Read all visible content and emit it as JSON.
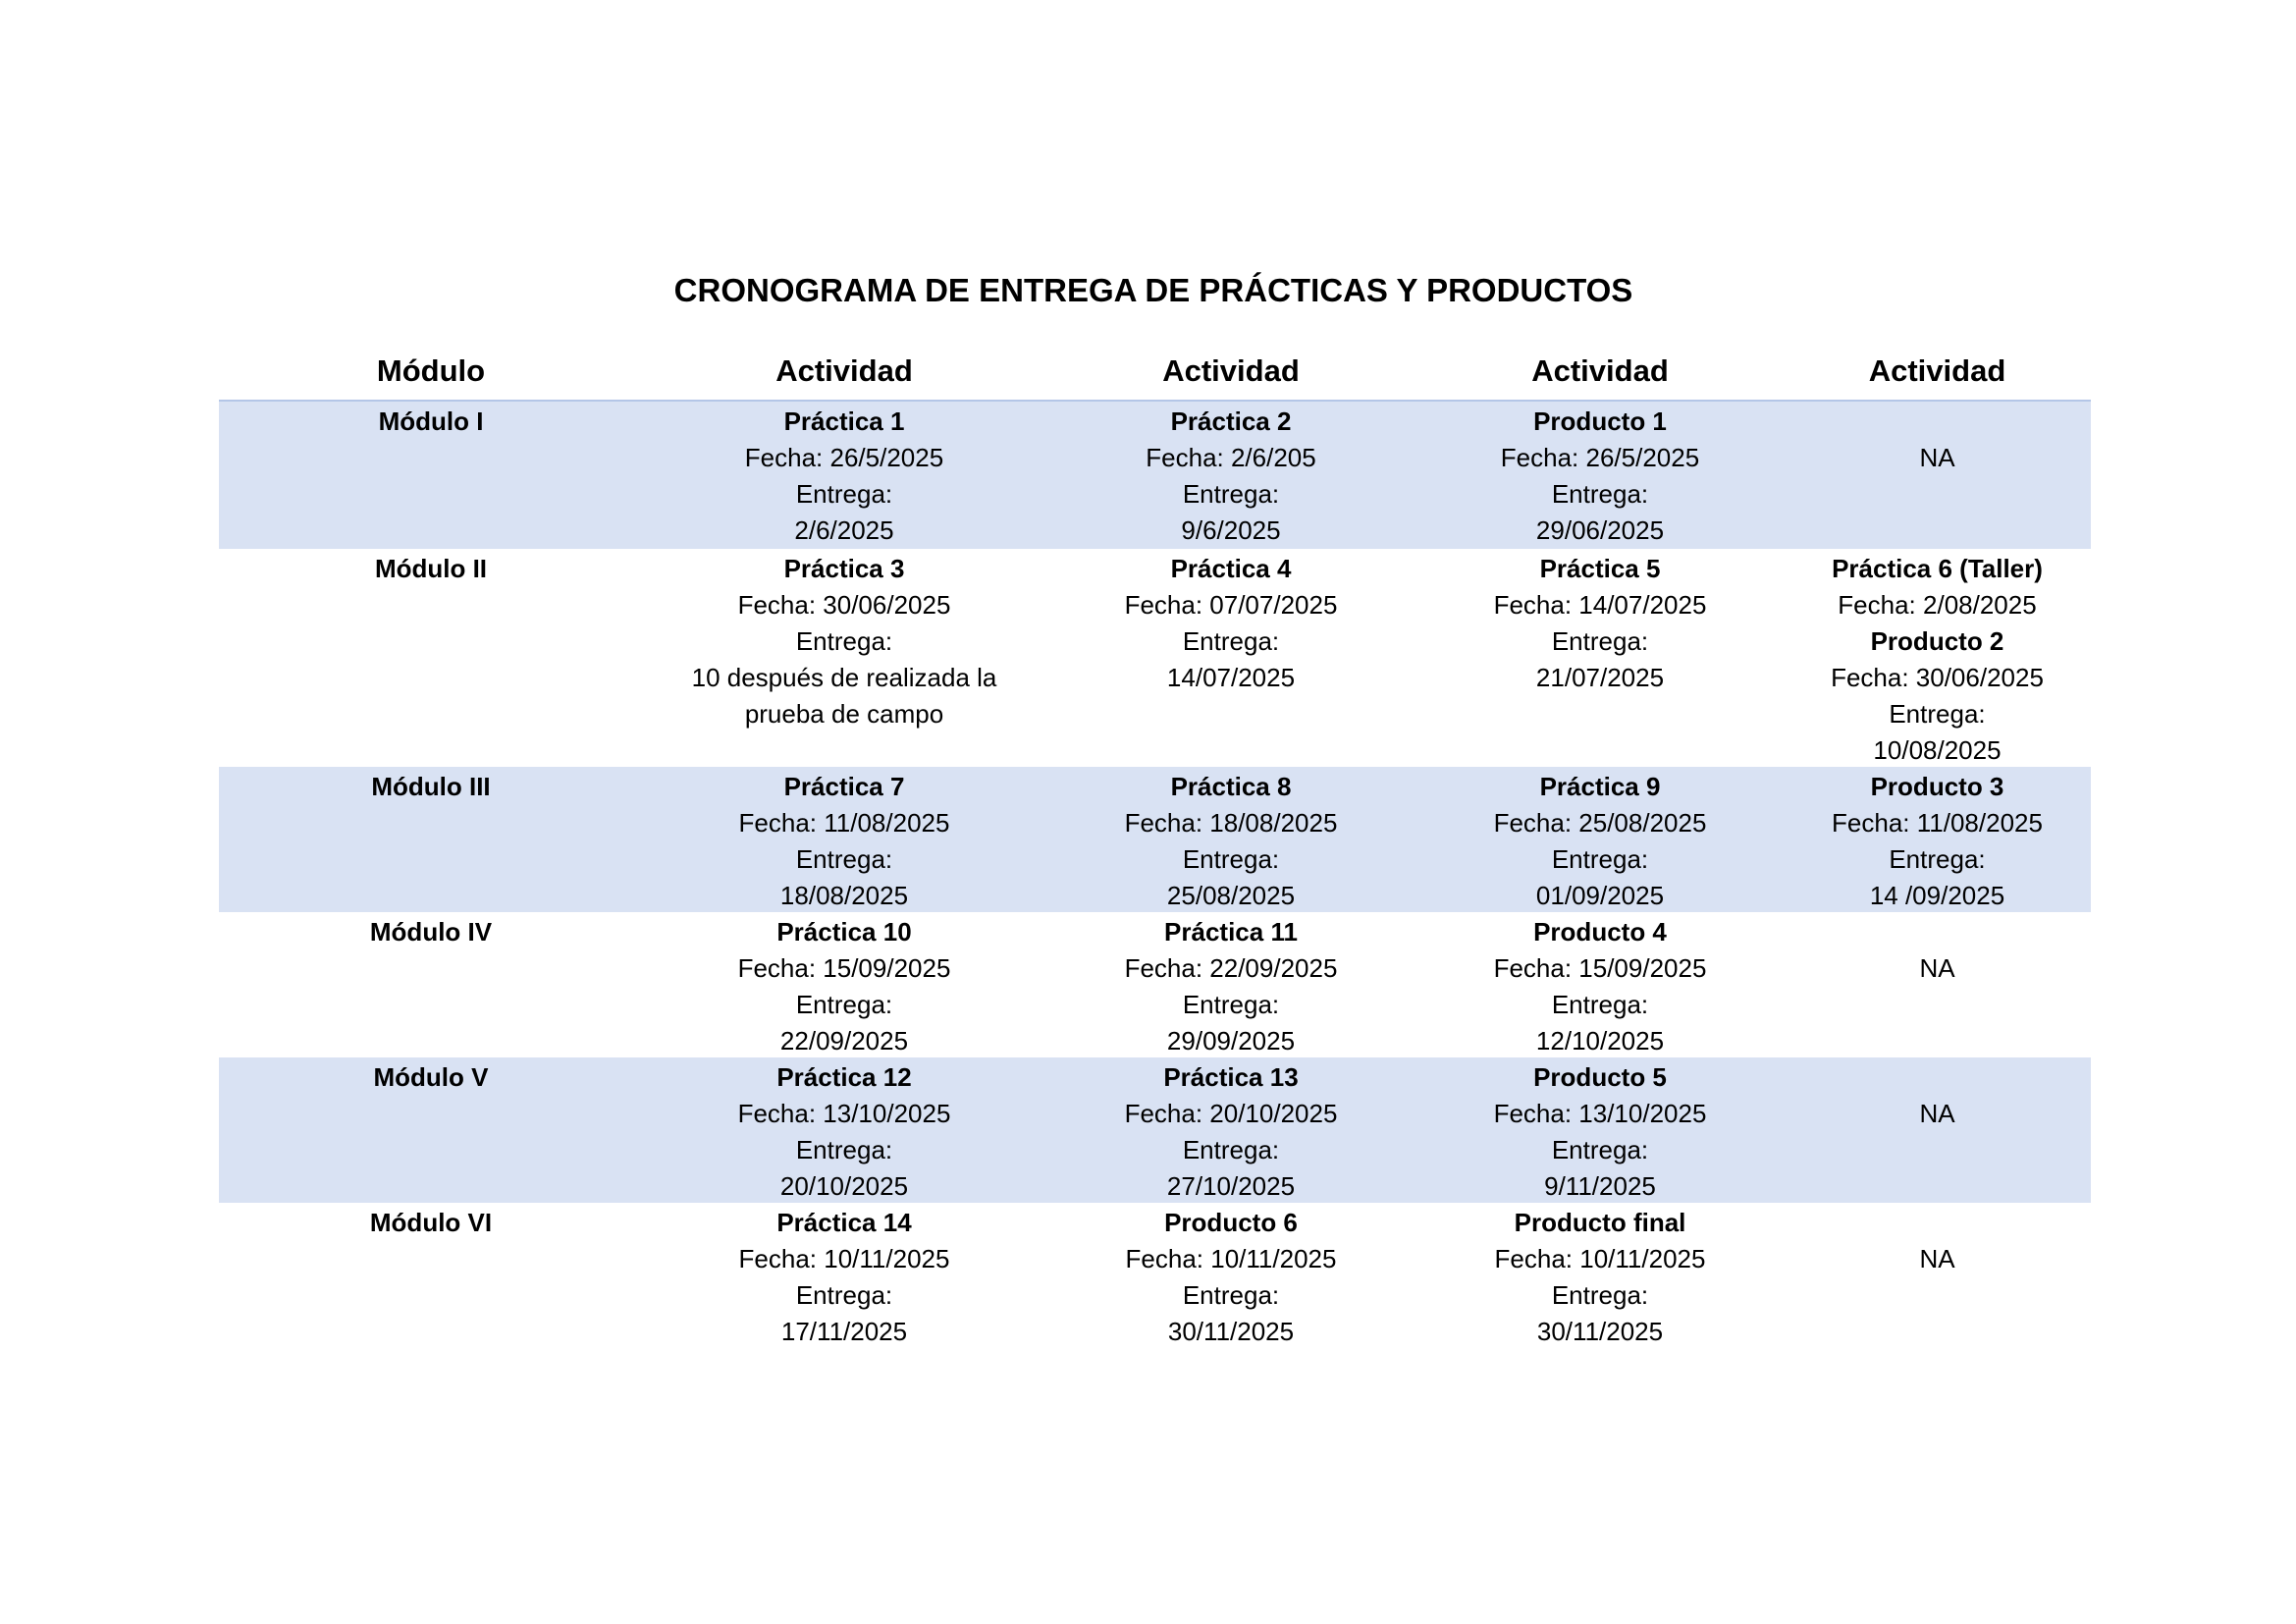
{
  "title": "CRONOGRAMA DE ENTREGA DE PRÁCTICAS Y PRODUCTOS",
  "headers": [
    "Módulo",
    "Actividad",
    "Actividad",
    "Actividad",
    "Actividad"
  ],
  "colors": {
    "row_shade": "#d9e2f3",
    "header_rule": "#b4c6e7"
  },
  "rows": [
    {
      "module": "Módulo I",
      "shaded": true,
      "cells": [
        {
          "lines": [
            {
              "t": "Práctica 1",
              "b": true
            },
            {
              "t": "Fecha: 26/5/2025"
            },
            {
              "t": "Entrega:"
            },
            {
              "t": "2/6/2025"
            }
          ]
        },
        {
          "lines": [
            {
              "t": "Práctica 2",
              "b": true
            },
            {
              "t": "Fecha: 2/6/205"
            },
            {
              "t": "Entrega:"
            },
            {
              "t": "9/6/2025"
            }
          ]
        },
        {
          "lines": [
            {
              "t": "Producto 1",
              "b": true
            },
            {
              "t": "Fecha: 26/5/2025"
            },
            {
              "t": "Entrega:"
            },
            {
              "t": "29/06/2025"
            }
          ]
        },
        {
          "na": true,
          "lines": [
            {
              "t": "NA"
            }
          ]
        }
      ]
    },
    {
      "module": "Módulo II",
      "shaded": false,
      "cells": [
        {
          "lines": [
            {
              "t": "Práctica 3",
              "b": true
            },
            {
              "t": "Fecha: 30/06/2025"
            },
            {
              "t": "Entrega:"
            },
            {
              "t": "10 después de realizada la prueba de campo"
            }
          ]
        },
        {
          "lines": [
            {
              "t": "Práctica 4",
              "b": true
            },
            {
              "t": "Fecha: 07/07/2025"
            },
            {
              "t": "Entrega:"
            },
            {
              "t": "14/07/2025"
            }
          ]
        },
        {
          "lines": [
            {
              "t": "Práctica 5",
              "b": true
            },
            {
              "t": "Fecha: 14/07/2025"
            },
            {
              "t": "Entrega:"
            },
            {
              "t": "21/07/2025"
            }
          ]
        },
        {
          "lines": [
            {
              "t": "Práctica 6 (Taller)",
              "b": true
            },
            {
              "t": "Fecha: 2/08/2025"
            },
            {
              "t": "Producto 2",
              "b": true
            },
            {
              "t": "Fecha: 30/06/2025"
            },
            {
              "t": "Entrega:"
            },
            {
              "t": "10/08/2025"
            }
          ]
        }
      ]
    },
    {
      "module": "Módulo III",
      "shaded": true,
      "cells": [
        {
          "lines": [
            {
              "t": "Práctica 7",
              "b": true
            },
            {
              "t": "Fecha: 11/08/2025"
            },
            {
              "t": "Entrega:"
            },
            {
              "t": "18/08/2025"
            }
          ]
        },
        {
          "lines": [
            {
              "t": "Práctica 8",
              "b": true
            },
            {
              "t": "Fecha: 18/08/2025"
            },
            {
              "t": "Entrega:"
            },
            {
              "t": "25/08/2025"
            }
          ]
        },
        {
          "lines": [
            {
              "t": "Práctica 9",
              "b": true
            },
            {
              "t": "Fecha: 25/08/2025"
            },
            {
              "t": "Entrega:"
            },
            {
              "t": "01/09/2025"
            }
          ]
        },
        {
          "lines": [
            {
              "t": "Producto 3",
              "b": true
            },
            {
              "t": "Fecha: 11/08/2025"
            },
            {
              "t": "Entrega:"
            },
            {
              "t": "14 /09/2025"
            }
          ]
        }
      ]
    },
    {
      "module": "Módulo IV",
      "shaded": false,
      "cells": [
        {
          "lines": [
            {
              "t": "Práctica 10",
              "b": true
            },
            {
              "t": "Fecha: 15/09/2025"
            },
            {
              "t": "Entrega:"
            },
            {
              "t": "22/09/2025"
            }
          ]
        },
        {
          "lines": [
            {
              "t": "Práctica 11",
              "b": true
            },
            {
              "t": "Fecha: 22/09/2025"
            },
            {
              "t": "Entrega:"
            },
            {
              "t": "29/09/2025"
            }
          ]
        },
        {
          "lines": [
            {
              "t": "Producto 4",
              "b": true
            },
            {
              "t": "Fecha: 15/09/2025"
            },
            {
              "t": "Entrega:"
            },
            {
              "t": "12/10/2025"
            }
          ]
        },
        {
          "na": true,
          "lines": [
            {
              "t": "NA"
            }
          ]
        }
      ]
    },
    {
      "module": "Módulo V",
      "shaded": true,
      "cells": [
        {
          "lines": [
            {
              "t": "Práctica 12",
              "b": true
            },
            {
              "t": "Fecha: 13/10/2025"
            },
            {
              "t": "Entrega:"
            },
            {
              "t": "20/10/2025"
            }
          ]
        },
        {
          "lines": [
            {
              "t": "Práctica 13",
              "b": true
            },
            {
              "t": "Fecha: 20/10/2025"
            },
            {
              "t": "Entrega:"
            },
            {
              "t": "27/10/2025"
            }
          ]
        },
        {
          "lines": [
            {
              "t": "Producto 5",
              "b": true
            },
            {
              "t": "Fecha: 13/10/2025"
            },
            {
              "t": "Entrega:"
            },
            {
              "t": "9/11/2025"
            }
          ]
        },
        {
          "na": true,
          "lines": [
            {
              "t": "NA"
            }
          ]
        }
      ]
    },
    {
      "module": "Módulo VI",
      "shaded": false,
      "cells": [
        {
          "lines": [
            {
              "t": "Práctica 14",
              "b": true
            },
            {
              "t": "Fecha: 10/11/2025"
            },
            {
              "t": "Entrega:"
            },
            {
              "t": "17/11/2025"
            }
          ]
        },
        {
          "lines": [
            {
              "t": "Producto 6",
              "b": true
            },
            {
              "t": "Fecha: 10/11/2025"
            },
            {
              "t": "Entrega:"
            },
            {
              "t": "30/11/2025"
            }
          ]
        },
        {
          "lines": [
            {
              "t": "Producto final",
              "b": true
            },
            {
              "t": "Fecha: 10/11/2025"
            },
            {
              "t": "Entrega:"
            },
            {
              "t": "30/11/2025"
            }
          ]
        },
        {
          "na": true,
          "lines": [
            {
              "t": "NA"
            }
          ]
        }
      ]
    }
  ]
}
